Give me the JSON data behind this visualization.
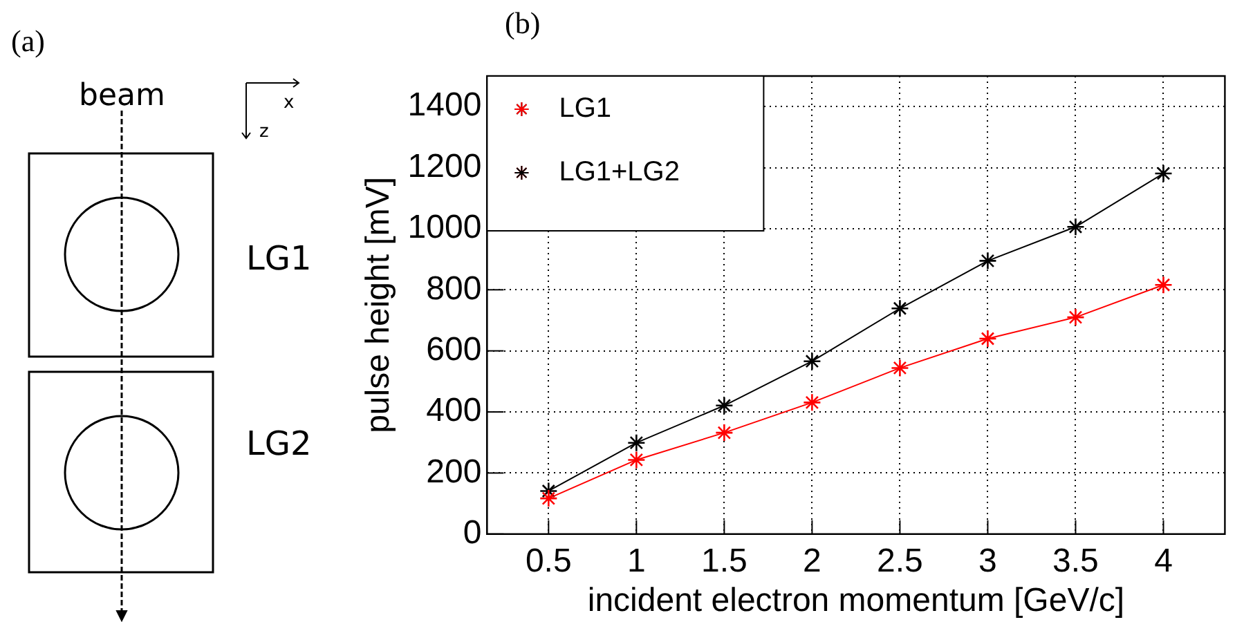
{
  "chart_data": [
    {
      "type": "other",
      "title": "(a)",
      "annotations": [
        "beam",
        "x",
        "z",
        "LG1",
        "LG2"
      ]
    },
    {
      "type": "line",
      "title": "(b)",
      "xlabel": "incident electron momentum [GeV/c]",
      "ylabel": "pulse height [mV]",
      "x": [
        0.5,
        1,
        1.5,
        2,
        2.5,
        3,
        3.5,
        4
      ],
      "series": [
        {
          "name": "LG1",
          "color": "#ff0000",
          "values": [
            117,
            243,
            332,
            431,
            544,
            640,
            710,
            816
          ]
        },
        {
          "name": "LG1+LG2",
          "color": "#000000",
          "values": [
            141,
            299,
            421,
            566,
            739,
            895,
            1006,
            1181
          ]
        }
      ],
      "xlim": [
        0.15,
        4.35
      ],
      "xticks": [
        0.5,
        1,
        1.5,
        2,
        2.5,
        3,
        3.5,
        4
      ],
      "ylim": [
        0,
        1500
      ],
      "yticks": [
        0,
        200,
        400,
        600,
        800,
        1000,
        1200,
        1400
      ],
      "grid": true,
      "legend": "top left",
      "marker": "cross",
      "line_style": "solid"
    }
  ]
}
